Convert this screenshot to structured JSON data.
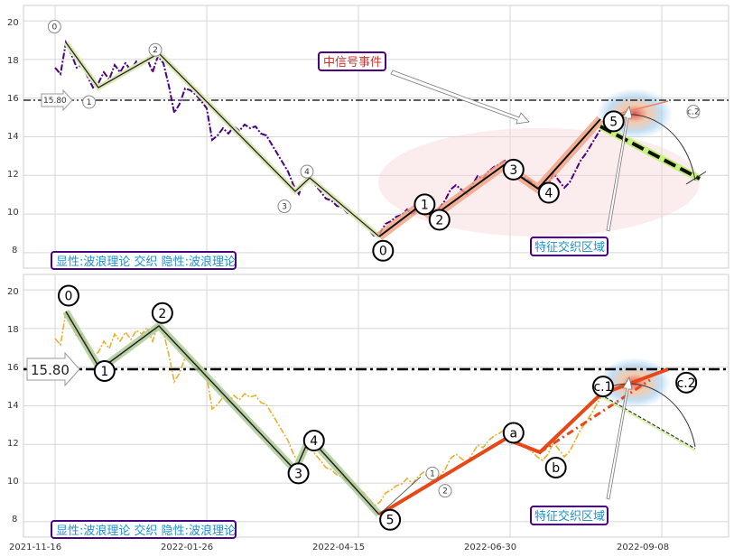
{
  "chart_data": [
    {
      "type": "line",
      "ylim": [
        7.2,
        20.8
      ],
      "y_ticks": [
        "8",
        "10",
        "12",
        "14",
        "16",
        "18",
        "20"
      ],
      "x_ticks": [],
      "baseline": {
        "value": 15.8,
        "label": "15.80"
      },
      "price_line_color": "#4b0082",
      "wave_labels": [
        {
          "text": "0",
          "x": 0.044,
          "y": 19.7,
          "big": false
        },
        {
          "text": "1",
          "x": 0.093,
          "y": 15.8,
          "big": false
        },
        {
          "text": "2",
          "x": 0.187,
          "y": 18.5,
          "big": false
        },
        {
          "text": "3",
          "x": 0.37,
          "y": 10.4,
          "big": false
        },
        {
          "text": "4",
          "x": 0.402,
          "y": 12.2,
          "big": false
        },
        {
          "text": "0",
          "x": 0.51,
          "y": 8.1,
          "big": true
        },
        {
          "text": "1",
          "x": 0.569,
          "y": 10.5,
          "big": true
        },
        {
          "text": "2",
          "x": 0.59,
          "y": 9.7,
          "big": true
        },
        {
          "text": "3",
          "x": 0.695,
          "y": 12.3,
          "big": true
        },
        {
          "text": "4",
          "x": 0.745,
          "y": 11.1,
          "big": true
        },
        {
          "text": "5",
          "x": 0.837,
          "y": 14.8,
          "big": true
        },
        {
          "text": "c.2",
          "x": 0.95,
          "y": 15.3,
          "big": false
        }
      ],
      "legend_box": "显性:波浪理论 交织 隐性:波浪理论",
      "signal_box": "中信号事件",
      "zone_box": "特征交织区域"
    },
    {
      "type": "line",
      "ylim": [
        7.2,
        20.8
      ],
      "y_ticks": [
        "8",
        "10",
        "12",
        "14",
        "16",
        "18",
        "20"
      ],
      "x_ticks": [
        "2021-11-16",
        "2022-01-26",
        "2022-04-15",
        "2022-06-30",
        "2022-09-08"
      ],
      "baseline": {
        "value": 15.8,
        "label": "15.80"
      },
      "price_line_color": "#e8b030",
      "wave_labels": [
        {
          "text": "0",
          "x": 0.064,
          "y": 19.7,
          "big": true
        },
        {
          "text": "1",
          "x": 0.115,
          "y": 15.8,
          "big": true
        },
        {
          "text": "2",
          "x": 0.197,
          "y": 18.8,
          "big": true
        },
        {
          "text": "3",
          "x": 0.39,
          "y": 10.5,
          "big": true
        },
        {
          "text": "4",
          "x": 0.412,
          "y": 12.2,
          "big": true
        },
        {
          "text": "5",
          "x": 0.52,
          "y": 8.1,
          "big": true
        },
        {
          "text": "1",
          "x": 0.58,
          "y": 10.5,
          "big": false
        },
        {
          "text": "2",
          "x": 0.598,
          "y": 9.6,
          "big": false
        },
        {
          "text": "a",
          "x": 0.695,
          "y": 12.6,
          "big": true
        },
        {
          "text": "b",
          "x": 0.755,
          "y": 10.8,
          "big": true
        },
        {
          "text": "c.1",
          "x": 0.822,
          "y": 15.0,
          "big": true
        },
        {
          "text": "c.2",
          "x": 0.94,
          "y": 15.2,
          "big": true
        }
      ],
      "legend_box": "显性:波浪理论 交织 隐性:波浪理论",
      "zone_box": "特征交织区域"
    }
  ]
}
